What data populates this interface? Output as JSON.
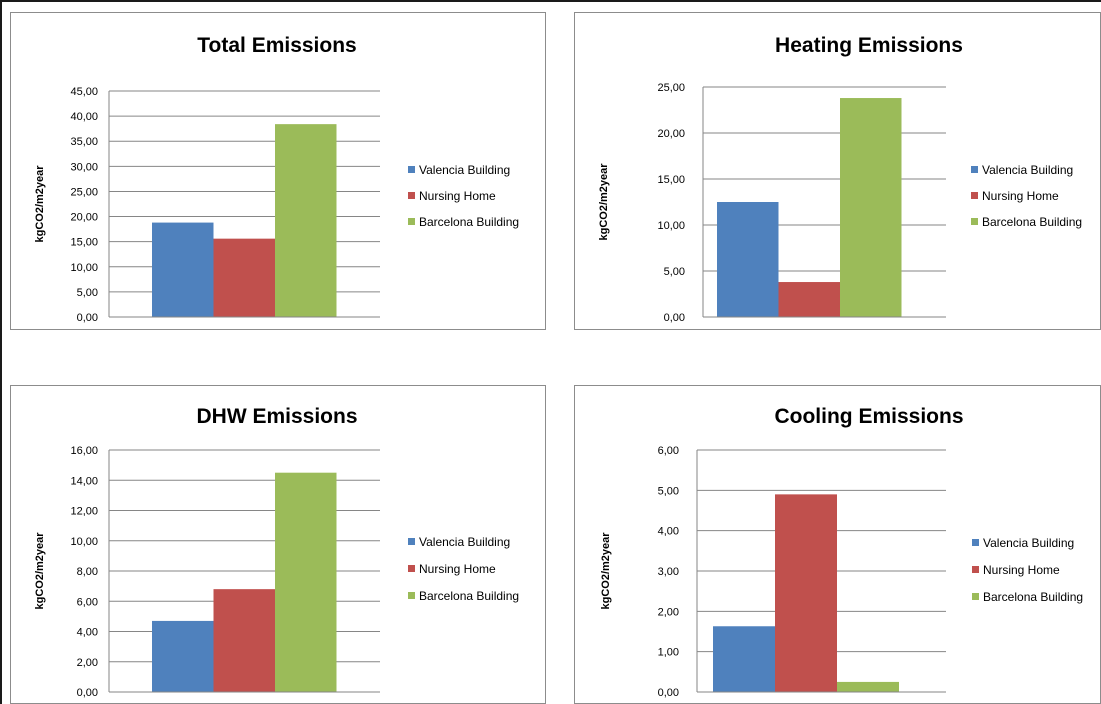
{
  "colors": {
    "valencia": "#4f81bd",
    "nursing": "#c0504d",
    "barcelona": "#9bbb59"
  },
  "chart_data": [
    {
      "type": "bar",
      "title": "Total Emissions",
      "ylabel": "kgCO2/m2year",
      "ylim": [
        0,
        45
      ],
      "yticks": [
        "0,00",
        "5,00",
        "10,00",
        "15,00",
        "20,00",
        "25,00",
        "30,00",
        "35,00",
        "40,00",
        "45,00"
      ],
      "grid": true,
      "legend_position": "right",
      "series": [
        {
          "name": "Valencia Building",
          "color": "#4f81bd",
          "values": [
            18.8
          ]
        },
        {
          "name": "Nursing Home",
          "color": "#c0504d",
          "values": [
            15.6
          ]
        },
        {
          "name": "Barcelona Building",
          "color": "#9bbb59",
          "values": [
            38.4
          ]
        }
      ]
    },
    {
      "type": "bar",
      "title": "Heating Emissions",
      "ylabel": "kgCO2/m2year",
      "ylim": [
        0,
        25
      ],
      "yticks": [
        "0,00",
        "5,00",
        "10,00",
        "15,00",
        "20,00",
        "25,00"
      ],
      "grid": true,
      "legend_position": "right",
      "series": [
        {
          "name": "Valencia Building",
          "color": "#4f81bd",
          "values": [
            12.5
          ]
        },
        {
          "name": "Nursing Home",
          "color": "#c0504d",
          "values": [
            3.8
          ]
        },
        {
          "name": "Barcelona Building",
          "color": "#9bbb59",
          "values": [
            23.8
          ]
        }
      ]
    },
    {
      "type": "bar",
      "title": "DHW Emissions",
      "ylabel": "kgCO2/m2year",
      "ylim": [
        0,
        16
      ],
      "yticks": [
        "0,00",
        "2,00",
        "4,00",
        "6,00",
        "8,00",
        "10,00",
        "12,00",
        "14,00",
        "16,00"
      ],
      "grid": true,
      "legend_position": "right",
      "series": [
        {
          "name": "Valencia Building",
          "color": "#4f81bd",
          "values": [
            4.7
          ]
        },
        {
          "name": "Nursing Home",
          "color": "#c0504d",
          "values": [
            6.8
          ]
        },
        {
          "name": "Barcelona Building",
          "color": "#9bbb59",
          "values": [
            14.5
          ]
        }
      ]
    },
    {
      "type": "bar",
      "title": "Cooling Emissions",
      "ylabel": "kgCO2/m2year",
      "ylim": [
        0,
        6
      ],
      "yticks": [
        "0,00",
        "1,00",
        "2,00",
        "3,00",
        "4,00",
        "5,00",
        "6,00"
      ],
      "grid": true,
      "legend_position": "right",
      "series": [
        {
          "name": "Valencia Building",
          "color": "#4f81bd",
          "values": [
            1.63
          ]
        },
        {
          "name": "Nursing Home",
          "color": "#c0504d",
          "values": [
            4.9
          ]
        },
        {
          "name": "Barcelona Building",
          "color": "#9bbb59",
          "values": [
            0.25
          ]
        }
      ]
    }
  ]
}
